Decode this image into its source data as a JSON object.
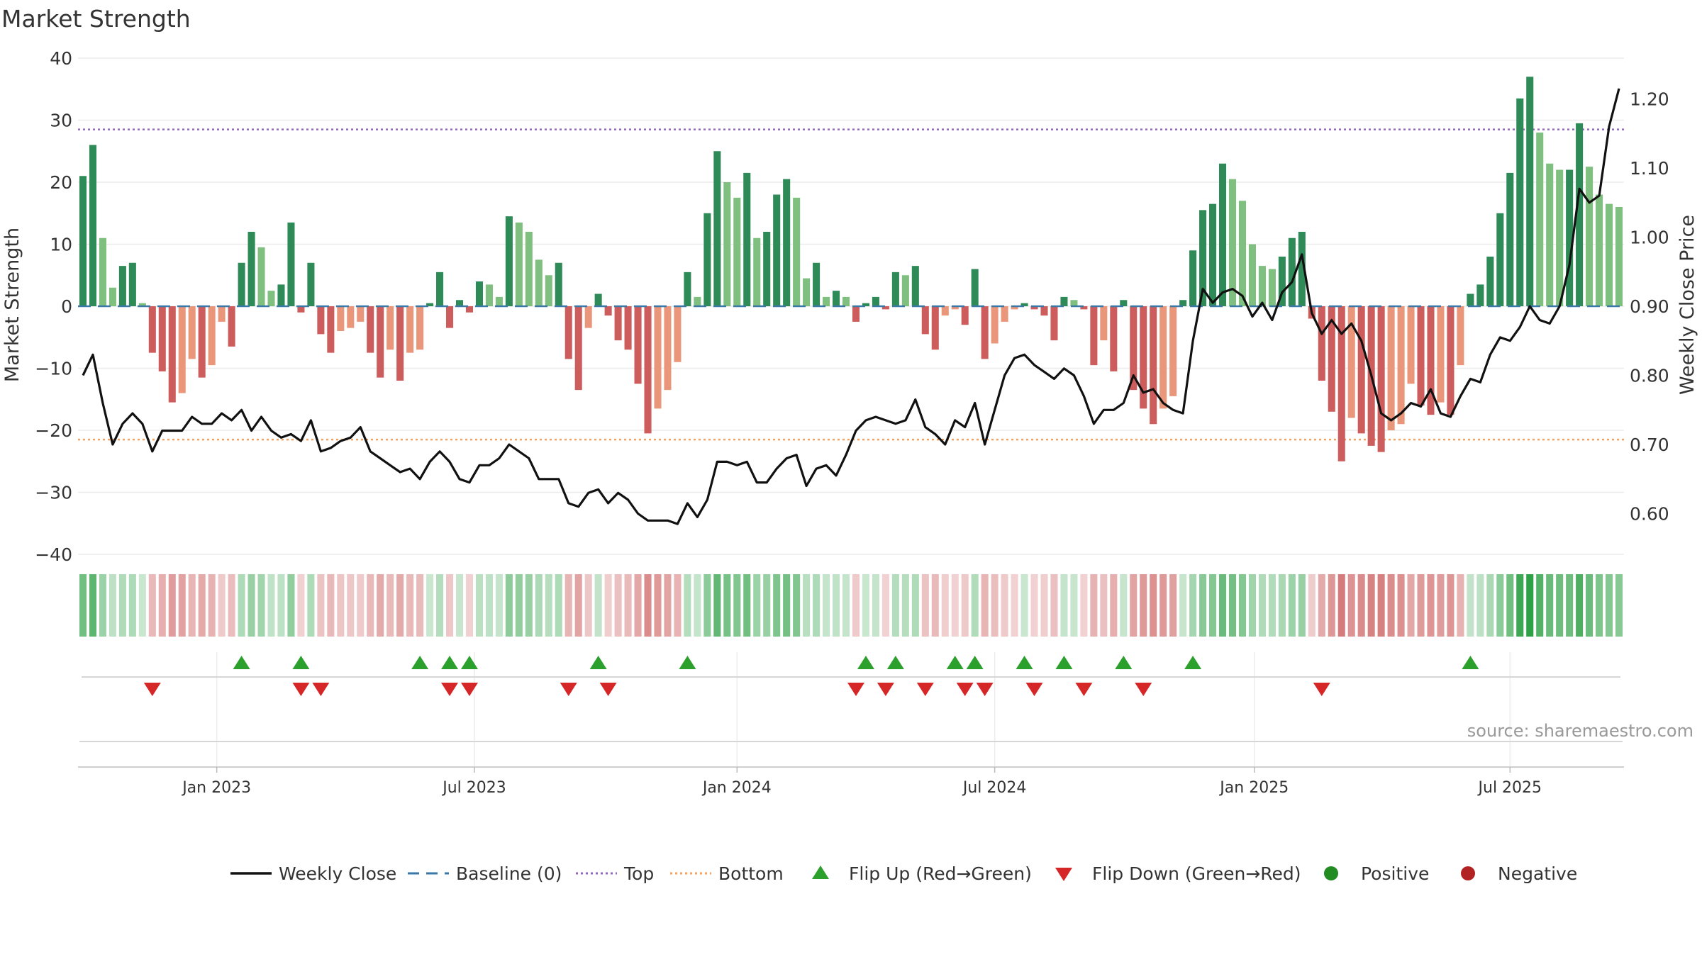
{
  "chart_data": {
    "type": "bar",
    "title": "Market Strength",
    "ylabel": "Market Strength",
    "y2label": "Weekly Close Price",
    "ylim": [
      -40,
      40
    ],
    "y2lim": [
      0.55,
      1.25
    ],
    "yticks": [
      40,
      30,
      20,
      10,
      0,
      -10,
      -20,
      -30,
      -40
    ],
    "ytick_labels": [
      "40",
      "30",
      "20",
      "10",
      "0",
      "−10",
      "−20",
      "−30",
      "−40"
    ],
    "y2ticks": [
      1.2,
      1.1,
      1.0,
      0.9,
      0.8,
      0.7,
      0.6
    ],
    "y2tick_labels": [
      "1.20",
      "1.10",
      "1.00",
      "0.90",
      "0.80",
      "0.70",
      "0.60"
    ],
    "x_start_week": "2022-10-10",
    "x_ticks": [
      {
        "label": "Jan 2023",
        "week": 14
      },
      {
        "label": "Jul 2023",
        "week": 40
      },
      {
        "label": "Jan 2024",
        "week": 66.5
      },
      {
        "label": "Jul 2024",
        "week": 92.5
      },
      {
        "label": "Jan 2025",
        "week": 118.7
      },
      {
        "label": "Jul 2025",
        "week": 144.5
      }
    ],
    "top_line": 28.5,
    "bottom_line": -21.5,
    "baseline": 0,
    "strength": [
      21,
      26,
      11,
      3,
      6.5,
      7,
      0.5,
      -7.5,
      -10.5,
      -15.5,
      -14,
      -8.5,
      -11.5,
      -9.5,
      -2.5,
      -6.5,
      7,
      12,
      9.5,
      2.5,
      3.5,
      13.5,
      -1,
      7,
      -4.5,
      -7.5,
      -4,
      -3.5,
      -2.5,
      -7.5,
      -11.5,
      -7,
      -12,
      -7.5,
      -7,
      0.5,
      5.5,
      -3.5,
      1,
      -1,
      4,
      3.5,
      1.5,
      14.5,
      13.5,
      12,
      7.5,
      5,
      7,
      -8.5,
      -13.5,
      -3.5,
      2,
      -1.5,
      -5.5,
      -7,
      -12.5,
      -20.5,
      -16.5,
      -13.5,
      -9,
      5.5,
      1.5,
      15,
      25,
      20,
      17.5,
      21.5,
      11,
      12,
      18,
      20.5,
      17.5,
      4.5,
      7,
      1.5,
      2.5,
      1.5,
      -2.5,
      0.5,
      1.5,
      -0.5,
      5.5,
      5,
      6.5,
      -4.5,
      -7,
      -1.5,
      -0.5,
      -3,
      6,
      -8.5,
      -6,
      -2.5,
      -0.5,
      0.5,
      -0.5,
      -1.5,
      -5.5,
      1.5,
      1,
      -0.5,
      -9.5,
      -5.5,
      -10.5,
      1,
      -13.5,
      -16.5,
      -19,
      -16.5,
      -14.5,
      1,
      9,
      15.5,
      16.5,
      23,
      20.5,
      17,
      10,
      6.5,
      6,
      8,
      11,
      12,
      -2,
      -12,
      -17,
      -25,
      -18,
      -20.5,
      -22.5,
      -23.5,
      -20,
      -19,
      -12.5,
      -16,
      -17.5,
      -15.5,
      -17.5,
      -9.5,
      2,
      3.5,
      8,
      15,
      21.5,
      33.5,
      37,
      28,
      23,
      22,
      22,
      29.5,
      22.5,
      18,
      16.5,
      16
    ],
    "price": [
      0.8,
      0.83,
      0.76,
      0.7,
      0.73,
      0.745,
      0.73,
      0.69,
      0.72,
      0.72,
      0.72,
      0.74,
      0.73,
      0.73,
      0.745,
      0.735,
      0.75,
      0.72,
      0.74,
      0.72,
      0.71,
      0.715,
      0.705,
      0.735,
      0.69,
      0.695,
      0.705,
      0.71,
      0.725,
      0.69,
      0.68,
      0.67,
      0.66,
      0.665,
      0.65,
      0.675,
      0.69,
      0.675,
      0.65,
      0.645,
      0.67,
      0.67,
      0.68,
      0.7,
      0.69,
      0.68,
      0.65,
      0.65,
      0.65,
      0.615,
      0.61,
      0.63,
      0.635,
      0.615,
      0.63,
      0.62,
      0.6,
      0.59,
      0.59,
      0.59,
      0.585,
      0.615,
      0.595,
      0.62,
      0.675,
      0.675,
      0.67,
      0.675,
      0.645,
      0.645,
      0.665,
      0.68,
      0.685,
      0.64,
      0.665,
      0.67,
      0.655,
      0.685,
      0.72,
      0.735,
      0.74,
      0.735,
      0.73,
      0.735,
      0.765,
      0.725,
      0.715,
      0.7,
      0.735,
      0.725,
      0.76,
      0.7,
      0.75,
      0.8,
      0.825,
      0.83,
      0.815,
      0.805,
      0.795,
      0.81,
      0.8,
      0.77,
      0.73,
      0.75,
      0.75,
      0.76,
      0.8,
      0.775,
      0.78,
      0.76,
      0.75,
      0.745,
      0.85,
      0.925,
      0.905,
      0.92,
      0.925,
      0.915,
      0.885,
      0.905,
      0.88,
      0.92,
      0.935,
      0.975,
      0.89,
      0.86,
      0.88,
      0.86,
      0.875,
      0.85,
      0.8,
      0.745,
      0.735,
      0.745,
      0.76,
      0.755,
      0.78,
      0.745,
      0.74,
      0.77,
      0.795,
      0.79,
      0.83,
      0.855,
      0.85,
      0.87,
      0.9,
      0.88,
      0.875,
      0.9,
      0.96,
      1.07,
      1.05,
      1.06,
      1.16,
      1.215
    ],
    "flip_up_weeks": [
      16,
      22,
      34,
      37,
      39,
      52,
      61,
      79,
      82,
      88,
      90,
      95,
      99,
      105,
      112,
      140
    ],
    "flip_down_weeks": [
      7,
      22,
      24,
      37,
      39,
      49,
      53,
      78,
      81,
      85,
      89,
      91,
      96,
      101,
      107,
      125
    ],
    "source_note": "source: sharemaestro.com",
    "legend": [
      {
        "label": "Weekly Close",
        "symbol": "solid-line",
        "color": "#111111"
      },
      {
        "label": "Baseline (0)",
        "symbol": "dashed-line",
        "color": "#3a78a8"
      },
      {
        "label": "Top",
        "symbol": "dotted-line",
        "color": "#9467bd"
      },
      {
        "label": "Bottom",
        "symbol": "dotted-line",
        "color": "#f4a261"
      },
      {
        "label": "Flip Up (Red→Green)",
        "symbol": "triangle-up",
        "color": "#2ca02c"
      },
      {
        "label": "Flip Down (Green→Red)",
        "symbol": "triangle-down",
        "color": "#d62728"
      },
      {
        "label": "Positive",
        "symbol": "circle",
        "color": "#228b22"
      },
      {
        "label": "Negative",
        "symbol": "circle",
        "color": "#b22222"
      }
    ],
    "legend_position": "bottom"
  },
  "colors": {
    "pos_strong": "#2e8b57",
    "pos_weak": "#7fbf7f",
    "neg_strong": "#cd5c5c",
    "neg_weak": "#e9967a",
    "price_line": "#111111",
    "grid": "#ececec",
    "text": "#333333"
  }
}
